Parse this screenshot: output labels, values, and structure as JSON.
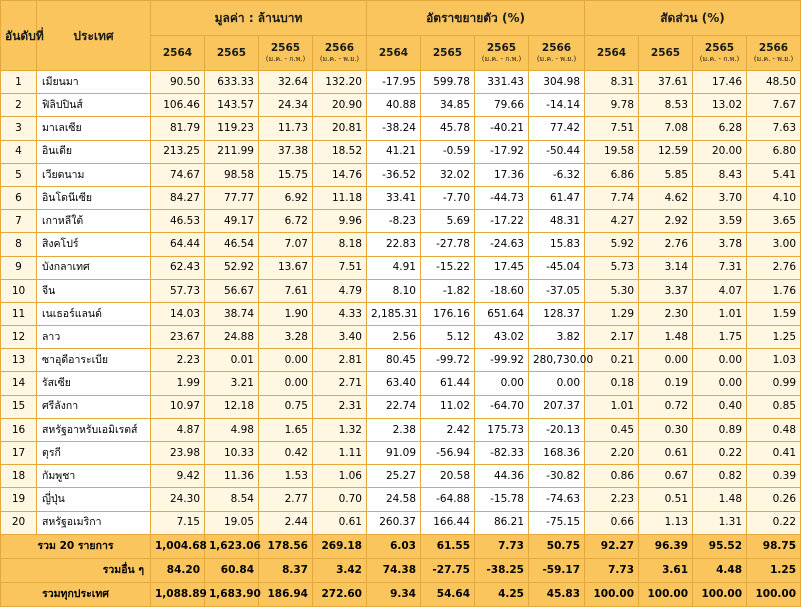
{
  "header": {
    "rank": "อันดับที่",
    "country": "ประเทศ",
    "group_value": "มูลค่า : ล้านบาท",
    "group_growth": "อัตราขยายตัว (%)",
    "group_share": "สัดส่วน (%)",
    "years": [
      {
        "year": "2564",
        "sub": ""
      },
      {
        "year": "2565",
        "sub": ""
      },
      {
        "year": "2565",
        "sub": "(ม.ค. - ก.พ.)"
      },
      {
        "year": "2566",
        "sub": "(ม.ค. - พ.ย.)"
      }
    ]
  },
  "rows": [
    {
      "rank": "1",
      "country": "เมียนมา",
      "v": [
        "90.50",
        "633.33",
        "32.64",
        "132.20"
      ],
      "g": [
        "-17.95",
        "599.78",
        "331.43",
        "304.98"
      ],
      "s": [
        "8.31",
        "37.61",
        "17.46",
        "48.50"
      ]
    },
    {
      "rank": "2",
      "country": "ฟิลิปปินส์",
      "v": [
        "106.46",
        "143.57",
        "24.34",
        "20.90"
      ],
      "g": [
        "40.88",
        "34.85",
        "79.66",
        "-14.14"
      ],
      "s": [
        "9.78",
        "8.53",
        "13.02",
        "7.67"
      ]
    },
    {
      "rank": "3",
      "country": "มาเลเซีย",
      "v": [
        "81.79",
        "119.23",
        "11.73",
        "20.81"
      ],
      "g": [
        "-38.24",
        "45.78",
        "-40.21",
        "77.42"
      ],
      "s": [
        "7.51",
        "7.08",
        "6.28",
        "7.63"
      ]
    },
    {
      "rank": "4",
      "country": "อินเดีย",
      "v": [
        "213.25",
        "211.99",
        "37.38",
        "18.52"
      ],
      "g": [
        "41.21",
        "-0.59",
        "-17.92",
        "-50.44"
      ],
      "s": [
        "19.58",
        "12.59",
        "20.00",
        "6.80"
      ]
    },
    {
      "rank": "5",
      "country": "เวียดนาม",
      "v": [
        "74.67",
        "98.58",
        "15.75",
        "14.76"
      ],
      "g": [
        "-36.52",
        "32.02",
        "17.36",
        "-6.32"
      ],
      "s": [
        "6.86",
        "5.85",
        "8.43",
        "5.41"
      ]
    },
    {
      "rank": "6",
      "country": "อินโดนีเซีย",
      "v": [
        "84.27",
        "77.77",
        "6.92",
        "11.18"
      ],
      "g": [
        "33.41",
        "-7.70",
        "-44.73",
        "61.47"
      ],
      "s": [
        "7.74",
        "4.62",
        "3.70",
        "4.10"
      ]
    },
    {
      "rank": "7",
      "country": "เกาหลีใต้",
      "v": [
        "46.53",
        "49.17",
        "6.72",
        "9.96"
      ],
      "g": [
        "-8.23",
        "5.69",
        "-17.22",
        "48.31"
      ],
      "s": [
        "4.27",
        "2.92",
        "3.59",
        "3.65"
      ]
    },
    {
      "rank": "8",
      "country": "สิงคโปร์",
      "v": [
        "64.44",
        "46.54",
        "7.07",
        "8.18"
      ],
      "g": [
        "22.83",
        "-27.78",
        "-24.63",
        "15.83"
      ],
      "s": [
        "5.92",
        "2.76",
        "3.78",
        "3.00"
      ]
    },
    {
      "rank": "9",
      "country": "บังกลาเทศ",
      "v": [
        "62.43",
        "52.92",
        "13.67",
        "7.51"
      ],
      "g": [
        "4.91",
        "-15.22",
        "17.45",
        "-45.04"
      ],
      "s": [
        "5.73",
        "3.14",
        "7.31",
        "2.76"
      ]
    },
    {
      "rank": "10",
      "country": "จีน",
      "v": [
        "57.73",
        "56.67",
        "7.61",
        "4.79"
      ],
      "g": [
        "8.10",
        "-1.82",
        "-18.60",
        "-37.05"
      ],
      "s": [
        "5.30",
        "3.37",
        "4.07",
        "1.76"
      ]
    },
    {
      "rank": "11",
      "country": "เนเธอร์แลนด์",
      "v": [
        "14.03",
        "38.74",
        "1.90",
        "4.33"
      ],
      "g": [
        "2,185.31",
        "176.16",
        "651.64",
        "128.37"
      ],
      "s": [
        "1.29",
        "2.30",
        "1.01",
        "1.59"
      ]
    },
    {
      "rank": "12",
      "country": "ลาว",
      "v": [
        "23.67",
        "24.88",
        "3.28",
        "3.40"
      ],
      "g": [
        "2.56",
        "5.12",
        "43.02",
        "3.82"
      ],
      "s": [
        "2.17",
        "1.48",
        "1.75",
        "1.25"
      ]
    },
    {
      "rank": "13",
      "country": "ซาอุดีอาระเบีย",
      "v": [
        "2.23",
        "0.01",
        "0.00",
        "2.81"
      ],
      "g": [
        "80.45",
        "-99.72",
        "-99.92",
        "280,730.00"
      ],
      "s": [
        "0.21",
        "0.00",
        "0.00",
        "1.03"
      ]
    },
    {
      "rank": "14",
      "country": "รัสเซีย",
      "v": [
        "1.99",
        "3.21",
        "0.00",
        "2.71"
      ],
      "g": [
        "63.40",
        "61.44",
        "0.00",
        "0.00"
      ],
      "s": [
        "0.18",
        "0.19",
        "0.00",
        "0.99"
      ]
    },
    {
      "rank": "15",
      "country": "ศรีลังกา",
      "v": [
        "10.97",
        "12.18",
        "0.75",
        "2.31"
      ],
      "g": [
        "22.74",
        "11.02",
        "-64.70",
        "207.37"
      ],
      "s": [
        "1.01",
        "0.72",
        "0.40",
        "0.85"
      ]
    },
    {
      "rank": "16",
      "country": "สหรัฐอาหรับเอมิเรตส์",
      "v": [
        "4.87",
        "4.98",
        "1.65",
        "1.32"
      ],
      "g": [
        "2.38",
        "2.42",
        "175.73",
        "-20.13"
      ],
      "s": [
        "0.45",
        "0.30",
        "0.89",
        "0.48"
      ]
    },
    {
      "rank": "17",
      "country": "ตุรกี",
      "v": [
        "23.98",
        "10.33",
        "0.42",
        "1.11"
      ],
      "g": [
        "91.09",
        "-56.94",
        "-82.33",
        "168.36"
      ],
      "s": [
        "2.20",
        "0.61",
        "0.22",
        "0.41"
      ]
    },
    {
      "rank": "18",
      "country": "กัมพูชา",
      "v": [
        "9.42",
        "11.36",
        "1.53",
        "1.06"
      ],
      "g": [
        "25.27",
        "20.58",
        "44.36",
        "-30.82"
      ],
      "s": [
        "0.86",
        "0.67",
        "0.82",
        "0.39"
      ]
    },
    {
      "rank": "19",
      "country": "ญี่ปุ่น",
      "v": [
        "24.30",
        "8.54",
        "2.77",
        "0.70"
      ],
      "g": [
        "24.58",
        "-64.88",
        "-15.78",
        "-74.63"
      ],
      "s": [
        "2.23",
        "0.51",
        "1.48",
        "0.26"
      ]
    },
    {
      "rank": "20",
      "country": "สหรัฐอเมริกา",
      "v": [
        "7.15",
        "19.05",
        "2.44",
        "0.61"
      ],
      "g": [
        "260.37",
        "166.44",
        "86.21",
        "-75.15"
      ],
      "s": [
        "0.66",
        "1.13",
        "1.31",
        "0.22"
      ]
    }
  ],
  "totals": [
    {
      "label": "รวม 20 รายการ",
      "v": [
        "1,004.68",
        "1,623.06",
        "178.56",
        "269.18"
      ],
      "g": [
        "6.03",
        "61.55",
        "7.73",
        "50.75"
      ],
      "s": [
        "92.27",
        "96.39",
        "95.52",
        "98.75"
      ]
    },
    {
      "label": "รวมอื่น ๆ",
      "v": [
        "84.20",
        "60.84",
        "8.37",
        "3.42"
      ],
      "g": [
        "74.38",
        "-27.75",
        "-38.25",
        "-59.17"
      ],
      "s": [
        "7.73",
        "3.61",
        "4.48",
        "1.25"
      ]
    },
    {
      "label": "รวมทุกประเทศ",
      "v": [
        "1,088.89",
        "1,683.90",
        "186.94",
        "272.60"
      ],
      "g": [
        "9.34",
        "54.64",
        "4.25",
        "45.83"
      ],
      "s": [
        "100.00",
        "100.00",
        "100.00",
        "100.00"
      ]
    }
  ]
}
